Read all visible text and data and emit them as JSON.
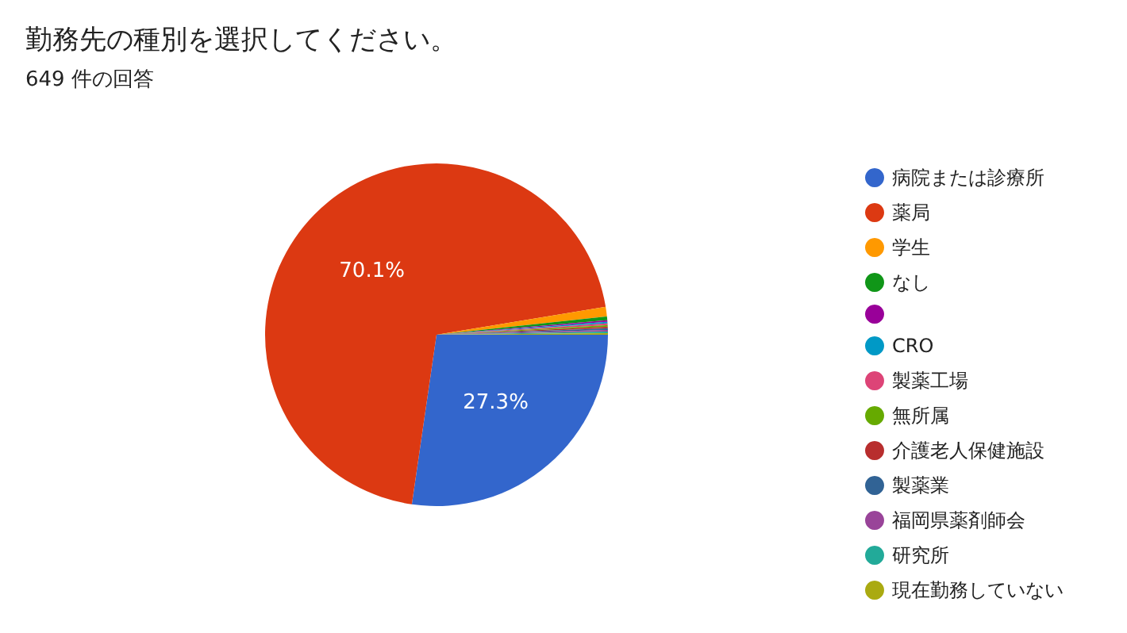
{
  "chart_data": {
    "type": "pie",
    "title": "勤務先の種別を選択してください。",
    "subtitle": "649 件の回答",
    "categories": [
      "病院または診療所",
      "薬局",
      "学生",
      "なし",
      null,
      "CRO",
      "製薬工場",
      "無所属",
      "介護老人保健施設",
      "製薬業",
      "福岡県薬剤師会",
      "研究所",
      "現在勤務していない"
    ],
    "values": [
      27.3,
      70.1,
      0.9,
      0.35,
      0.15,
      0.15,
      0.15,
      0.15,
      0.15,
      0.15,
      0.15,
      0.15,
      0.15
    ],
    "colors": [
      "#3366cc",
      "#dc3912",
      "#ff9900",
      "#109618",
      "#990099",
      "#0099c6",
      "#dd4477",
      "#66aa00",
      "#b82e2e",
      "#316395",
      "#994499",
      "#22aa99",
      "#aaaa11"
    ],
    "value_labels": [
      "27.3%",
      "70.1%",
      null,
      null,
      null,
      null,
      null,
      null,
      null,
      null,
      null,
      null,
      null
    ],
    "legend": "right"
  }
}
